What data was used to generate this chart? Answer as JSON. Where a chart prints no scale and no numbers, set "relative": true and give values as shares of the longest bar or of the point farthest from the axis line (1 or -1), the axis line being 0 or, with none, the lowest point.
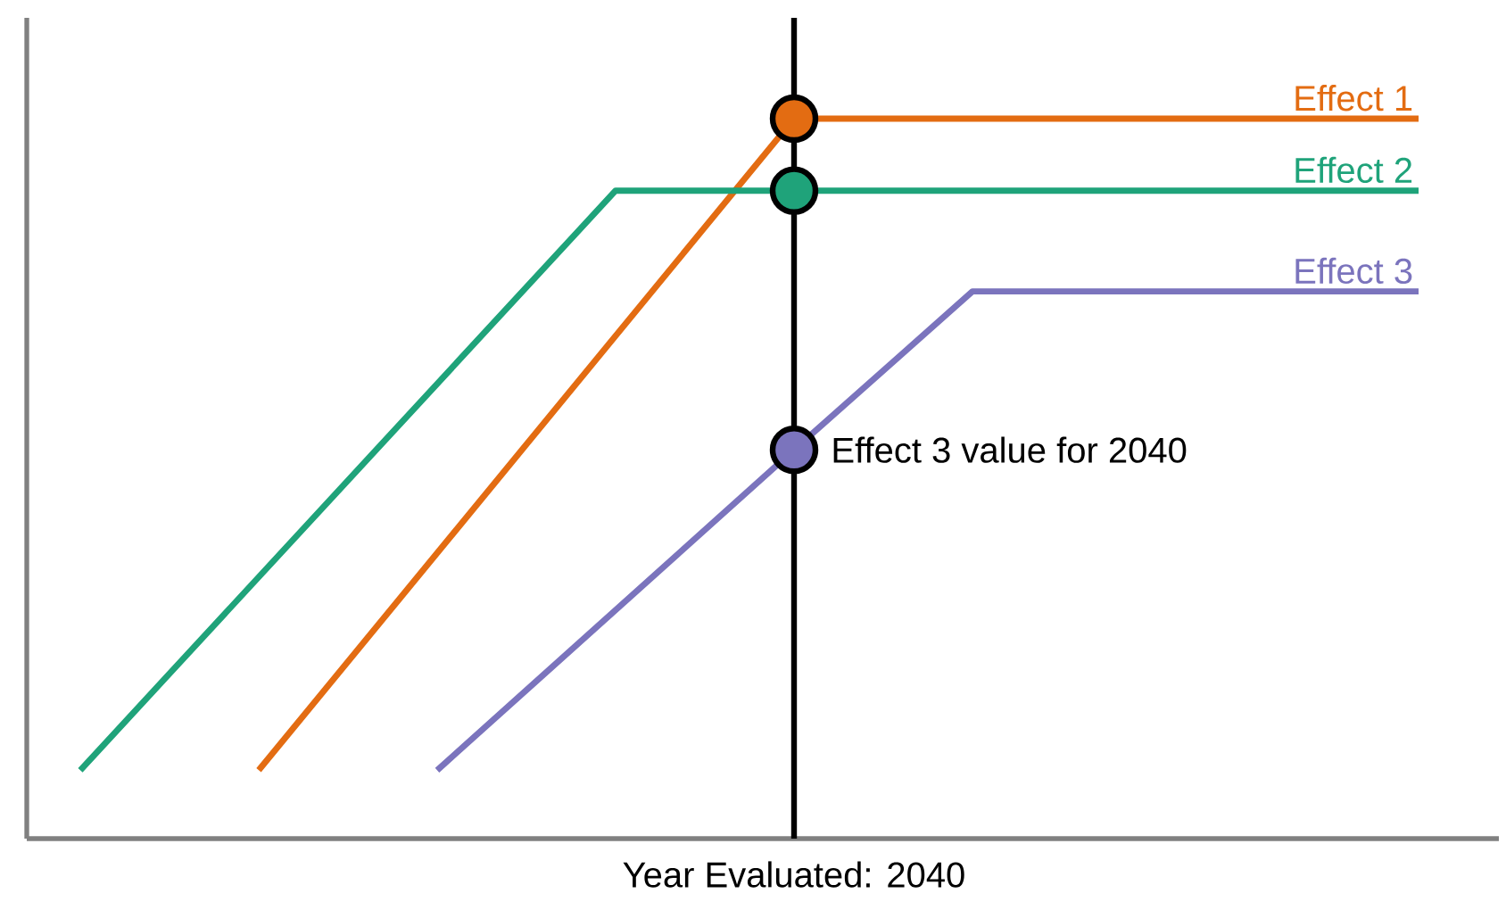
{
  "chart_data": {
    "type": "line",
    "relative": true,
    "xlabel": "Year Evaluated: 2040",
    "categories": [
      null,
      null,
      null,
      null,
      null,
      null,
      null,
      null,
      null,
      null,
      null,
      null,
      null,
      null,
      null,
      null
    ],
    "series": [
      {
        "name": "Effect 1",
        "color": "#e36c12",
        "values": [
          null,
          null,
          0.095,
          null,
          null,
          null,
          null,
          null,
          1,
          null,
          null,
          null,
          null,
          null,
          null,
          1
        ]
      },
      {
        "name": "Effect 2",
        "color": "#1fa37a",
        "values": [
          0.095,
          null,
          null,
          null,
          null,
          null,
          0.9,
          null,
          0.9,
          null,
          null,
          null,
          null,
          null,
          null,
          0.9
        ]
      },
      {
        "name": "Effect 3",
        "color": "#7b74bd",
        "values": [
          null,
          null,
          null,
          null,
          0.095,
          null,
          null,
          null,
          0.54,
          null,
          0.76,
          null,
          null,
          null,
          null,
          0.76
        ]
      }
    ],
    "marker": "none",
    "line_style": "solid",
    "annotations": [
      "Effect 3 value for 2040"
    ]
  }
}
